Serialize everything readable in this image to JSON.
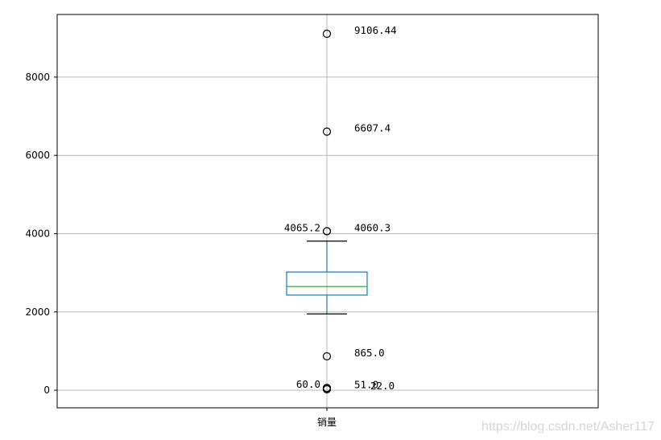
{
  "chart_data": {
    "type": "box",
    "categories": [
      "销量"
    ],
    "box": {
      "q1": 2430,
      "median": 2650,
      "q3": 3020,
      "whisker_low": 1950,
      "whisker_high": 3810
    },
    "outliers": [
      9106.44,
      6607.4,
      4065.2,
      4060.3,
      865.0,
      60.0,
      51.0,
      22.0
    ],
    "annotations": [
      {
        "text": "9106.44",
        "value": 9106.44,
        "side": "right"
      },
      {
        "text": "6607.4",
        "value": 6607.4,
        "side": "right"
      },
      {
        "text": "4065.2",
        "value": 4065.2,
        "side": "left"
      },
      {
        "text": "4060.3",
        "value": 4060.3,
        "side": "right"
      },
      {
        "text": "865.0",
        "value": 865.0,
        "side": "right"
      },
      {
        "text": "60.0",
        "value": 60.0,
        "side": "left"
      },
      {
        "text": "51.0",
        "value": 51.0,
        "side": "right"
      },
      {
        "text": "22.0",
        "value": 22.0,
        "side": "far-right"
      }
    ],
    "yticks": [
      0,
      2000,
      4000,
      6000,
      8000
    ],
    "ylim": [
      -450,
      9600
    ],
    "grid": true,
    "colors": {
      "box": "#1f77b4",
      "median": "#2ca02c",
      "whisker_cap": "#000000",
      "grid": "#b0b0b0"
    }
  },
  "watermark": "https://blog.csdn.net/Asher117"
}
